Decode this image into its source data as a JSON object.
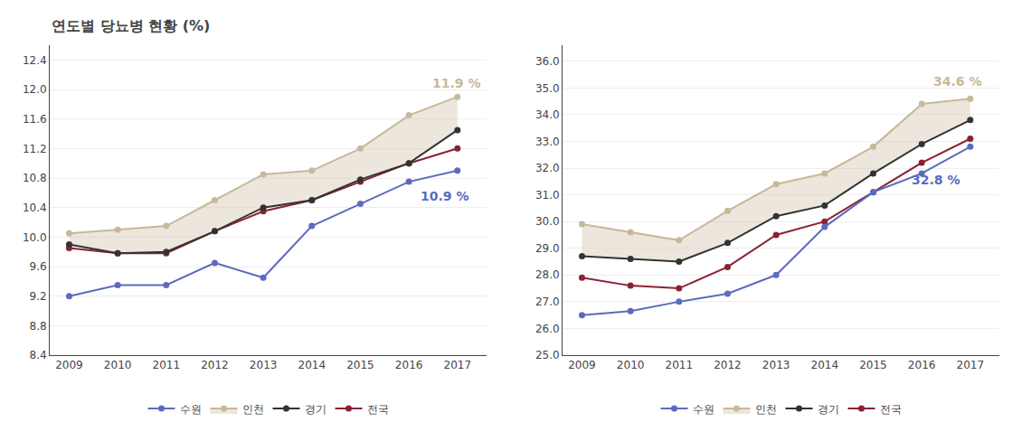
{
  "chart_data": [
    {
      "type": "line",
      "title": "연도별 당뇨병 현황 (%)",
      "x": [
        2009,
        2010,
        2011,
        2012,
        2013,
        2014,
        2015,
        2016,
        2017
      ],
      "xlim": [
        2008.6,
        2017.6
      ],
      "xticks": [
        2009,
        2010,
        2011,
        2012,
        2013,
        2014,
        2015,
        2016,
        2017
      ],
      "ylim": [
        8.4,
        12.6
      ],
      "yticks": [
        8.4,
        8.8,
        9.2,
        9.6,
        {
          "value": 10.0,
          "label": "10.0"
        },
        10.4,
        10.8,
        11.2,
        11.6,
        {
          "value": 12.0,
          "label": "12.0"
        },
        12.4
      ],
      "grid": "y",
      "legend": "bottom",
      "marker": "circle",
      "series": [
        {
          "name": "전국",
          "color": "#8b2233",
          "values": [
            9.85,
            9.78,
            9.78,
            10.08,
            10.35,
            10.5,
            10.75,
            11.0,
            11.2
          ]
        },
        {
          "name": "경기",
          "color": "#333333",
          "values": [
            9.9,
            9.78,
            9.8,
            10.08,
            10.4,
            10.5,
            10.78,
            11.0,
            11.45
          ]
        },
        {
          "name": "인천",
          "color": "#c8b89a",
          "type": "area",
          "values": [
            10.05,
            10.1,
            10.15,
            10.5,
            10.85,
            10.9,
            11.2,
            11.65,
            11.9
          ]
        },
        {
          "name": "수원",
          "color": "#5b6bbf",
          "values": [
            9.2,
            9.35,
            9.35,
            9.65,
            9.45,
            10.15,
            10.45,
            10.75,
            10.9
          ]
        }
      ],
      "annotations": [
        {
          "text": "11.9 %",
          "x": 2016.45,
          "y": 12.08,
          "color": "#c8b89a"
        },
        {
          "text": "10.9 %",
          "x": 2016.2,
          "y": 10.55,
          "color": "#5b6bbf"
        }
      ]
    },
    {
      "type": "line",
      "x": [
        2009,
        2010,
        2011,
        2012,
        2013,
        2014,
        2015,
        2016,
        2017
      ],
      "xlim": [
        2008.6,
        2017.6
      ],
      "xticks": [
        2009,
        2010,
        2011,
        2012,
        2013,
        2014,
        2015,
        2016,
        2017
      ],
      "ylim": [
        25.0,
        36.6
      ],
      "yticks": [
        {
          "value": 25.0,
          "label": "25.0"
        },
        {
          "value": 26.0,
          "label": "26.0"
        },
        {
          "value": 27.0,
          "label": "27.0"
        },
        {
          "value": 28.0,
          "label": "28.0"
        },
        {
          "value": 29.0,
          "label": "29.0"
        },
        {
          "value": 30.0,
          "label": "30.0"
        },
        {
          "value": 31.0,
          "label": "31.0"
        },
        {
          "value": 32.0,
          "label": "32.0"
        },
        {
          "value": 33.0,
          "label": "33.0"
        },
        {
          "value": 34.0,
          "label": "34.0"
        },
        {
          "value": 35.0,
          "label": "35.0"
        },
        {
          "value": 36.0,
          "label": "36.0"
        }
      ],
      "grid": "y",
      "legend": "bottom",
      "marker": "circle",
      "series": [
        {
          "name": "전국",
          "color": "#8b2233",
          "values": [
            27.9,
            27.6,
            27.5,
            28.3,
            29.5,
            30.0,
            31.1,
            32.2,
            33.1
          ]
        },
        {
          "name": "경기",
          "color": "#333333",
          "values": [
            28.7,
            28.6,
            28.5,
            29.2,
            30.2,
            30.6,
            31.8,
            32.9,
            33.8
          ]
        },
        {
          "name": "인천",
          "color": "#c8b89a",
          "type": "area",
          "values": [
            29.9,
            29.6,
            29.3,
            30.4,
            31.4,
            31.8,
            32.8,
            34.4,
            34.6
          ]
        },
        {
          "name": "수원",
          "color": "#5b6bbf",
          "values": [
            26.5,
            26.65,
            27.0,
            27.3,
            28.0,
            29.8,
            31.1,
            31.8,
            32.8
          ]
        }
      ],
      "annotations": [
        {
          "text": "34.6 %",
          "x": 2016.2,
          "y": 35.25,
          "color": "#c8b89a"
        },
        {
          "text": "32.8 %",
          "x": 2015.75,
          "y": 31.55,
          "color": "#5b6bbf"
        }
      ]
    }
  ]
}
